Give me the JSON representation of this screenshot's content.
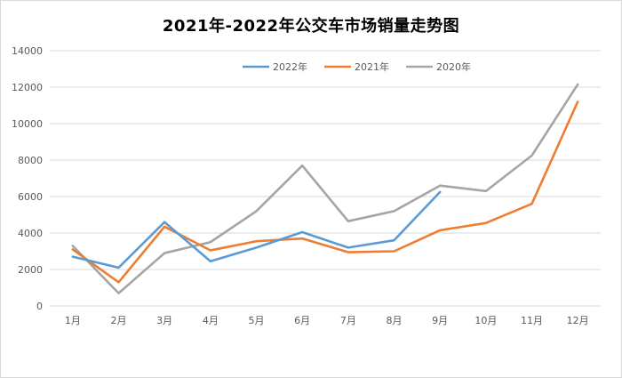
{
  "chart_data": {
    "type": "line",
    "title": "2021年-2022年公交车市场销量走势图",
    "xlabel": "",
    "ylabel": "",
    "categories": [
      "1月",
      "2月",
      "3月",
      "4月",
      "5月",
      "6月",
      "7月",
      "8月",
      "9月",
      "10月",
      "11月",
      "12月"
    ],
    "ylim": [
      0,
      14000
    ],
    "yticks": [
      0,
      2000,
      4000,
      6000,
      8000,
      10000,
      12000,
      14000
    ],
    "grid": true,
    "legend_position": "top",
    "series": [
      {
        "name": "2022年",
        "color": "#5b9bd5",
        "values": [
          2700,
          2100,
          4600,
          2450,
          3200,
          4050,
          3200,
          3600,
          6250,
          null,
          null,
          null
        ]
      },
      {
        "name": "2021年",
        "color": "#ed7d31",
        "values": [
          3100,
          1300,
          4350,
          3050,
          3550,
          3700,
          2950,
          3000,
          4150,
          4550,
          5600,
          11200
        ]
      },
      {
        "name": "2020年",
        "color": "#a5a5a5",
        "values": [
          3300,
          700,
          2900,
          3500,
          5200,
          7700,
          4650,
          5200,
          6600,
          6300,
          8250,
          12150
        ]
      }
    ]
  }
}
